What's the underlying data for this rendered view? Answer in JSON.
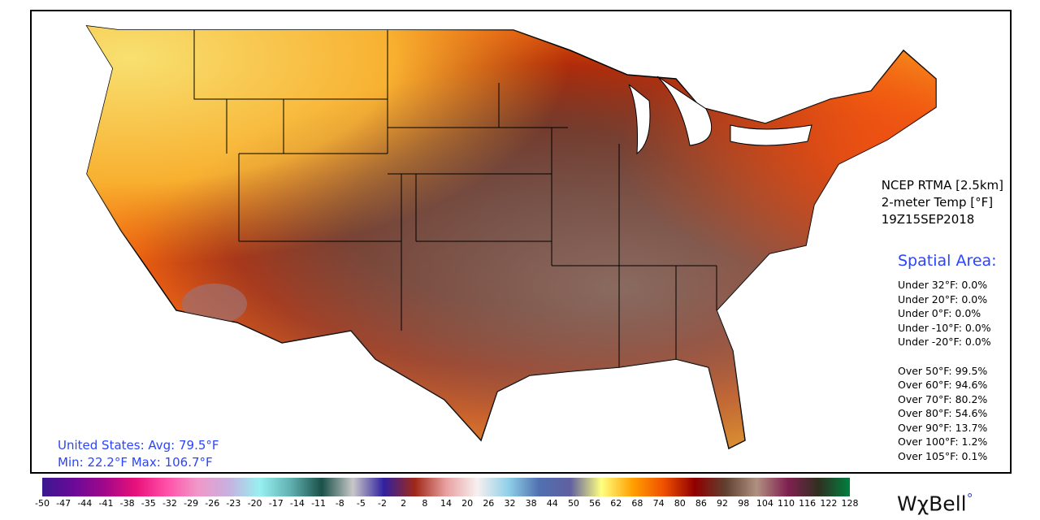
{
  "title": {
    "line1": "NCEP RTMA [2.5km]",
    "line2": "2-meter Temp [°F]",
    "line3": "19Z15SEP2018"
  },
  "spatial": {
    "heading": "Spatial Area:",
    "under": [
      "Under 32°F: 0.0%",
      "Under 20°F: 0.0%",
      "Under 0°F: 0.0%",
      "Under -10°F: 0.0%",
      "Under -20°F: 0.0%"
    ],
    "over": [
      "Over 50°F: 99.5%",
      "Over 60°F: 94.6%",
      "Over 70°F: 80.2%",
      "Over 80°F: 54.6%",
      "Over 90°F: 13.7%",
      "Over 100°F: 1.2%",
      "Over 105°F: 0.1%"
    ]
  },
  "summary": {
    "line1": "United States: Avg:  79.5°F",
    "line2": "Min:  22.2°F Max: 106.7°F"
  },
  "colorbar": {
    "ticks": [
      "-50",
      "-47",
      "-44",
      "-41",
      "-38",
      "-35",
      "-32",
      "-29",
      "-26",
      "-23",
      "-20",
      "-17",
      "-14",
      "-11",
      "-8",
      "-5",
      "-2",
      "2",
      "8",
      "14",
      "20",
      "26",
      "32",
      "38",
      "44",
      "50",
      "56",
      "62",
      "68",
      "74",
      "80",
      "86",
      "92",
      "98",
      "104",
      "110",
      "116",
      "122",
      "128"
    ],
    "colors": [
      "#3a1890",
      "#6a0a98",
      "#a0088a",
      "#e8107a",
      "#ff50a8",
      "#f098c8",
      "#c8b0e0",
      "#98f0f0",
      "#60b0b0",
      "#1a5048",
      "#c8c8c8",
      "#3020a0",
      "#a02818",
      "#e8a0a0",
      "#f8f0f0",
      "#90d0e8",
      "#5070b0",
      "#6060a0",
      "#ffff80",
      "#ffa000",
      "#f05000",
      "#900000",
      "#604030",
      "#b09080",
      "#802050",
      "#303020",
      "#008040"
    ]
  },
  "logo": {
    "text": "WχBell",
    "mark": "°"
  }
}
